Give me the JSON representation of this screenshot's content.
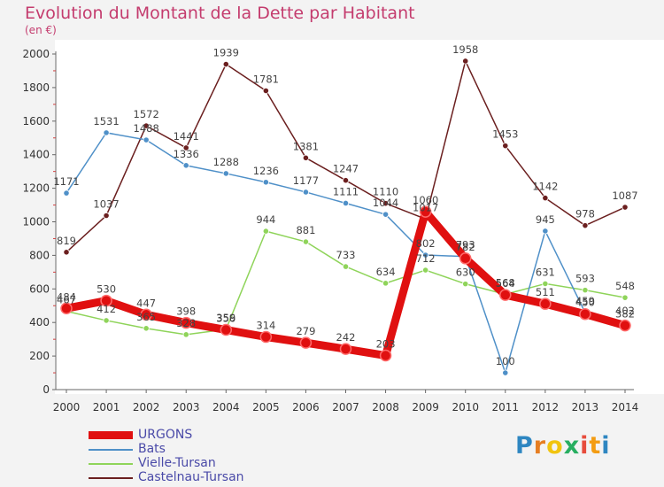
{
  "title": "Evolution du Montant de la Dette par Habitant",
  "subtitle": "(en €)",
  "logo": {
    "letters": [
      "P",
      "r",
      "o",
      "x",
      "i",
      "t",
      "i"
    ],
    "colors": [
      "#2e86c1",
      "#e67e22",
      "#f1c40f",
      "#27ae60",
      "#e74c3c",
      "#f39c12",
      "#2e86c1"
    ]
  },
  "chart_data": {
    "type": "line",
    "title": "Evolution du Montant de la Dette par Habitant",
    "ylabel": "(en €)",
    "xlabel": "",
    "x": [
      "2000",
      "2001",
      "2002",
      "2003",
      "2004",
      "2005",
      "2006",
      "2007",
      "2008",
      "2009",
      "2010",
      "2011",
      "2012",
      "2013",
      "2014"
    ],
    "ylim": [
      0,
      2000
    ],
    "yticks": [
      "0",
      "200",
      "400",
      "600",
      "800",
      "1000",
      "1200",
      "1400",
      "1600",
      "1800",
      "2000"
    ],
    "grid": false,
    "legend_position": "bottom-left",
    "series": [
      {
        "name": "URGONS",
        "color": "#e01010",
        "values": [
          484,
          530,
          447,
          398,
          356,
          314,
          279,
          242,
          203,
          1060,
          782,
          564,
          511,
          450,
          382
        ],
        "labels": [
          "484",
          "530",
          "447",
          "398",
          "356",
          "314",
          "279",
          "242",
          "203",
          "1060",
          "782",
          "564",
          "511",
          "450",
          "382"
        ]
      },
      {
        "name": "Bats",
        "color": "#4f90c8",
        "values": [
          1171,
          1531,
          1488,
          1336,
          1288,
          1236,
          1177,
          1111,
          1044,
          802,
          793,
          100,
          945,
          459,
          402
        ],
        "labels": [
          "1171",
          "1531",
          "1488",
          "1336",
          "1288",
          "1236",
          "1177",
          "1111",
          "1044",
          "802",
          "793",
          "100",
          "945",
          "459",
          "402"
        ]
      },
      {
        "name": "Vielle-Tursan",
        "color": "#8fd45a",
        "values": [
          467,
          412,
          365,
          328,
          359,
          944,
          881,
          733,
          634,
          712,
          630,
          568,
          631,
          593,
          548
        ],
        "labels": [
          "467",
          "412",
          "365",
          "328",
          "359",
          "944",
          "881",
          "733",
          "634",
          "712",
          "630",
          "568",
          "631",
          "593",
          "548"
        ]
      },
      {
        "name": "Castelnau-Tursan",
        "color": "#6b1f1f",
        "values": [
          819,
          1037,
          1572,
          1441,
          1939,
          1781,
          1381,
          1247,
          1110,
          1017,
          1958,
          1453,
          1142,
          978,
          1087
        ],
        "labels": [
          "819",
          "1037",
          "1572",
          "1441",
          "1939",
          "1781",
          "1381",
          "1247",
          "1110",
          "1017",
          "1958",
          "1453",
          "1142",
          "978",
          "1087"
        ]
      }
    ]
  }
}
